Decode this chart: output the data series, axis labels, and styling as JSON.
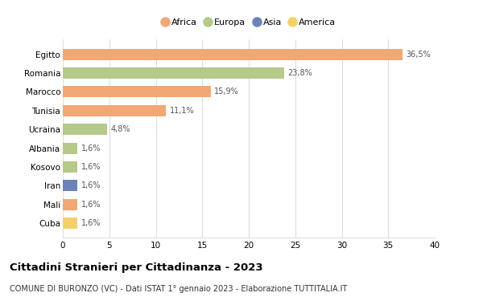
{
  "countries": [
    "Egitto",
    "Romania",
    "Marocco",
    "Tunisia",
    "Ucraina",
    "Albania",
    "Kosovo",
    "Iran",
    "Mali",
    "Cuba"
  ],
  "values": [
    36.5,
    23.8,
    15.9,
    11.1,
    4.8,
    1.6,
    1.6,
    1.6,
    1.6,
    1.6
  ],
  "labels": [
    "36,5%",
    "23,8%",
    "15,9%",
    "11,1%",
    "4,8%",
    "1,6%",
    "1,6%",
    "1,6%",
    "1,6%",
    "1,6%"
  ],
  "colors": [
    "#f0a875",
    "#b5c98a",
    "#f0a875",
    "#f0a875",
    "#b5c98a",
    "#b5c98a",
    "#b5c98a",
    "#6b84b8",
    "#f0a875",
    "#f5d06a"
  ],
  "legend_labels": [
    "Africa",
    "Europa",
    "Asia",
    "America"
  ],
  "legend_colors": [
    "#f0a875",
    "#b5c98a",
    "#6b84b8",
    "#f5d06a"
  ],
  "xlim": [
    0,
    40
  ],
  "xticks": [
    0,
    5,
    10,
    15,
    20,
    25,
    30,
    35,
    40
  ],
  "title": "Cittadini Stranieri per Cittadinanza - 2023",
  "subtitle": "COMUNE DI BURONZO (VC) - Dati ISTAT 1° gennaio 2023 - Elaborazione TUTTITALIA.IT",
  "title_fontsize": 9.5,
  "subtitle_fontsize": 7,
  "background_color": "#ffffff",
  "grid_color": "#dddddd",
  "bar_height": 0.6
}
